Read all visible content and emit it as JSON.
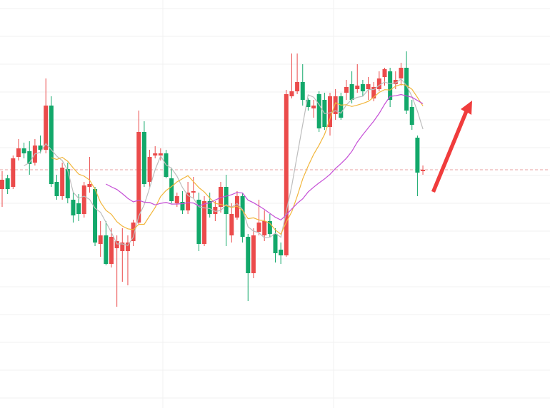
{
  "chart_data": {
    "type": "candlestick",
    "open": [
      307,
      322,
      310,
      352,
      364,
      360,
      344,
      368,
      362,
      424,
      317,
      297,
      335,
      292,
      287,
      272,
      310,
      307,
      230,
      242,
      202,
      224,
      220,
      220,
      234,
      260,
      387,
      317,
      354,
      354,
      357,
      322,
      287,
      289,
      277,
      302,
      292,
      230,
      290,
      272,
      282,
      310,
      242,
      267,
      297,
      240,
      189,
      247,
      242,
      262,
      244,
      222,
      214,
      437,
      444,
      457,
      432,
      420,
      440,
      432,
      394,
      412,
      437,
      442,
      454,
      447,
      454,
      447,
      434,
      447,
      464,
      472,
      454,
      462,
      477,
      422,
      379,
      332
    ],
    "high": [
      332,
      327,
      354,
      377,
      372,
      374,
      377,
      382,
      462,
      437,
      327,
      344,
      344,
      302,
      300,
      317,
      352,
      310,
      262,
      262,
      252,
      242,
      252,
      242,
      264,
      417,
      402,
      362,
      367,
      364,
      362,
      337,
      302,
      304,
      317,
      324,
      302,
      297,
      302,
      290,
      317,
      327,
      287,
      304,
      302,
      244,
      252,
      292,
      277,
      272,
      252,
      232,
      446,
      497,
      497,
      482,
      434,
      432,
      444,
      442,
      442,
      447,
      442,
      460,
      472,
      482,
      460,
      464,
      457,
      472,
      477,
      477,
      472,
      484,
      500,
      432,
      382,
      340
    ],
    "low": [
      282,
      300,
      307,
      347,
      350,
      327,
      340,
      357,
      357,
      310,
      292,
      292,
      287,
      260,
      262,
      267,
      302,
      227,
      212,
      200,
      197,
      142,
      177,
      172,
      227,
      257,
      310,
      310,
      350,
      347,
      322,
      287,
      282,
      272,
      272,
      294,
      220,
      227,
      267,
      262,
      274,
      227,
      232,
      264,
      232,
      150,
      182,
      242,
      234,
      240,
      204,
      202,
      212,
      434,
      440,
      424,
      417,
      407,
      387,
      390,
      382,
      404,
      404,
      432,
      427,
      442,
      437,
      432,
      430,
      444,
      452,
      422,
      447,
      452,
      412,
      390,
      297,
      327
    ],
    "close": [
      320,
      307,
      350,
      364,
      357,
      342,
      368,
      362,
      424,
      314,
      297,
      337,
      294,
      270,
      272,
      312,
      314,
      232,
      242,
      202,
      240,
      234,
      232,
      232,
      260,
      387,
      314,
      352,
      357,
      357,
      324,
      290,
      297,
      277,
      302,
      304,
      230,
      290,
      272,
      282,
      310,
      272,
      272,
      297,
      240,
      189,
      242,
      260,
      262,
      244,
      217,
      214,
      440,
      444,
      457,
      432,
      422,
      424,
      392,
      394,
      437,
      437,
      407,
      450,
      432,
      452,
      444,
      454,
      450,
      462,
      475,
      432,
      460,
      477,
      417,
      397,
      330,
      334
    ],
    "up_color": "#eb4b4b",
    "down_color": "#12a86a",
    "ylim": [
      0,
      572
    ],
    "grid": true,
    "price_line": 334,
    "price_line_color": "#e8a0a0",
    "moving_averages": [
      {
        "period": 5,
        "color": "#bdbdbd"
      },
      {
        "period": 10,
        "color": "#f2b63c"
      },
      {
        "period": 20,
        "color": "#c54fd6"
      }
    ]
  }
}
